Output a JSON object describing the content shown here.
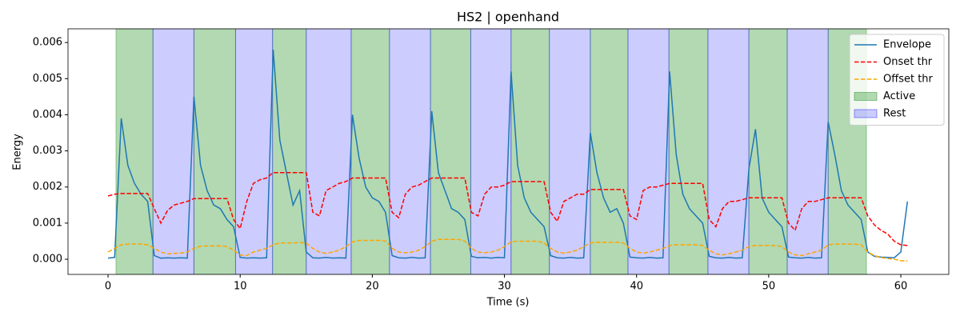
{
  "chart_data": {
    "type": "line",
    "title": "HS2 | openhand",
    "xlabel": "Time (s)",
    "ylabel": "Energy",
    "x": [
      0,
      0.5,
      1,
      1.5,
      2,
      2.5,
      3,
      3.5,
      4,
      4.5,
      5,
      5.5,
      6,
      6.5,
      7,
      7.5,
      8,
      8.5,
      9,
      9.5,
      10,
      10.5,
      11,
      11.5,
      12,
      12.5,
      13,
      13.5,
      14,
      14.5,
      15,
      15.5,
      16,
      16.5,
      17,
      17.5,
      18,
      18.5,
      19,
      19.5,
      20,
      20.5,
      21,
      21.5,
      22,
      22.5,
      23,
      23.5,
      24,
      24.5,
      25,
      25.5,
      26,
      26.5,
      27,
      27.5,
      28,
      28.5,
      29,
      29.5,
      30,
      30.5,
      31,
      31.5,
      32,
      32.5,
      33,
      33.5,
      34,
      34.5,
      35,
      35.5,
      36,
      36.5,
      37,
      37.5,
      38,
      38.5,
      39,
      39.5,
      40,
      40.5,
      41,
      41.5,
      42,
      42.5,
      43,
      43.5,
      44,
      44.5,
      45,
      45.5,
      46,
      46.5,
      47,
      47.5,
      48,
      48.5,
      49,
      49.5,
      50,
      50.5,
      51,
      51.5,
      52,
      52.5,
      53,
      53.5,
      54,
      54.5,
      55,
      55.5,
      56,
      56.5,
      57,
      57.5,
      58,
      58.5,
      59,
      59.5,
      60,
      60.5
    ],
    "series": [
      {
        "name": "Envelope",
        "color": "#1f77b4",
        "dash": false,
        "values": [
          3e-05,
          5e-05,
          0.0039,
          0.0026,
          0.0021,
          0.0018,
          0.0016,
          0.0001,
          3e-05,
          4e-05,
          3e-05,
          4e-05,
          3e-05,
          0.0045,
          0.0026,
          0.0019,
          0.0015,
          0.0014,
          0.0011,
          0.0009,
          5e-05,
          3e-05,
          4e-05,
          3e-05,
          4e-05,
          0.0058,
          0.0033,
          0.0024,
          0.0015,
          0.0019,
          0.0002,
          4e-05,
          3e-05,
          5e-05,
          3e-05,
          4e-05,
          3e-05,
          0.004,
          0.0028,
          0.002,
          0.0017,
          0.0016,
          0.0013,
          0.0001,
          4e-05,
          3e-05,
          5e-05,
          3e-05,
          4e-05,
          0.0041,
          0.0024,
          0.0019,
          0.0014,
          0.0013,
          0.0011,
          8e-05,
          4e-05,
          5e-05,
          3e-05,
          5e-05,
          4e-05,
          0.0052,
          0.0026,
          0.0017,
          0.0013,
          0.0011,
          0.0009,
          0.0001,
          4e-05,
          3e-05,
          5e-05,
          3e-05,
          4e-05,
          0.0035,
          0.0024,
          0.0017,
          0.0013,
          0.0014,
          0.001,
          6e-05,
          4e-05,
          3e-05,
          5e-05,
          3e-05,
          4e-05,
          0.0052,
          0.0029,
          0.0018,
          0.0014,
          0.0012,
          0.001,
          8e-05,
          4e-05,
          3e-05,
          5e-05,
          3e-05,
          4e-05,
          0.0025,
          0.0036,
          0.0017,
          0.0013,
          0.0011,
          0.0009,
          6e-05,
          4e-05,
          3e-05,
          5e-05,
          3e-05,
          4e-05,
          0.0038,
          0.0029,
          0.0019,
          0.0015,
          0.0013,
          0.0011,
          0.0002,
          8e-05,
          6e-05,
          5e-05,
          4e-05,
          0.0002,
          0.0016
        ]
      },
      {
        "name": "Onset thr",
        "color": "#ff0000",
        "dash": true,
        "values": [
          0.00175,
          0.0018,
          0.00182,
          0.00182,
          0.00182,
          0.00182,
          0.00182,
          0.0014,
          0.001,
          0.00135,
          0.0015,
          0.00155,
          0.0016,
          0.00168,
          0.00168,
          0.00168,
          0.00168,
          0.00168,
          0.00168,
          0.0011,
          0.00085,
          0.0016,
          0.0021,
          0.0022,
          0.00225,
          0.0024,
          0.0024,
          0.0024,
          0.0024,
          0.0024,
          0.0024,
          0.0013,
          0.0012,
          0.0019,
          0.002,
          0.0021,
          0.00215,
          0.00225,
          0.00225,
          0.00225,
          0.00225,
          0.00225,
          0.00225,
          0.0013,
          0.00115,
          0.0018,
          0.002,
          0.00205,
          0.00215,
          0.00225,
          0.00225,
          0.00225,
          0.00225,
          0.00225,
          0.00225,
          0.0013,
          0.0012,
          0.0018,
          0.002,
          0.002,
          0.00205,
          0.00215,
          0.00215,
          0.00215,
          0.00215,
          0.00215,
          0.00215,
          0.0013,
          0.00105,
          0.0016,
          0.0017,
          0.0018,
          0.0018,
          0.00193,
          0.00193,
          0.00193,
          0.00193,
          0.00193,
          0.00193,
          0.0012,
          0.0011,
          0.0019,
          0.002,
          0.002,
          0.00205,
          0.0021,
          0.0021,
          0.0021,
          0.0021,
          0.0021,
          0.0021,
          0.0011,
          0.0009,
          0.0014,
          0.0016,
          0.0016,
          0.00165,
          0.0017,
          0.0017,
          0.0017,
          0.0017,
          0.0017,
          0.0017,
          0.001,
          0.0008,
          0.0014,
          0.0016,
          0.0016,
          0.00165,
          0.0017,
          0.0017,
          0.0017,
          0.0017,
          0.0017,
          0.0017,
          0.0012,
          0.00095,
          0.0008,
          0.0007,
          0.0005,
          0.0004,
          0.00038
        ]
      },
      {
        "name": "Offset thr",
        "color": "#ffa500",
        "dash": true,
        "values": [
          0.0002,
          0.0003,
          0.0004,
          0.00042,
          0.00042,
          0.00042,
          0.0004,
          0.0003,
          0.0002,
          0.00015,
          0.00016,
          0.00017,
          0.0002,
          0.0003,
          0.00036,
          0.00037,
          0.00037,
          0.00037,
          0.00035,
          0.00025,
          0.00012,
          0.0001,
          0.0002,
          0.00025,
          0.0003,
          0.0004,
          0.00045,
          0.00045,
          0.00045,
          0.00046,
          0.00045,
          0.0003,
          0.0002,
          0.00016,
          0.0002,
          0.00025,
          0.00035,
          0.00048,
          0.00052,
          0.00052,
          0.00052,
          0.00052,
          0.0005,
          0.0003,
          0.0002,
          0.00018,
          0.0002,
          0.00025,
          0.00035,
          0.0005,
          0.00055,
          0.00055,
          0.00055,
          0.00055,
          0.0005,
          0.0003,
          0.0002,
          0.00018,
          0.0002,
          0.00025,
          0.00035,
          0.00048,
          0.0005,
          0.0005,
          0.0005,
          0.0005,
          0.00045,
          0.0003,
          0.0002,
          0.00017,
          0.0002,
          0.00025,
          0.00035,
          0.00045,
          0.00047,
          0.00047,
          0.00047,
          0.00047,
          0.00045,
          0.0003,
          0.0002,
          0.00017,
          0.0002,
          0.00025,
          0.0003,
          0.00038,
          0.0004,
          0.0004,
          0.0004,
          0.0004,
          0.00038,
          0.00025,
          0.00015,
          0.00012,
          0.00015,
          0.0002,
          0.00025,
          0.00035,
          0.00038,
          0.00038,
          0.00038,
          0.00038,
          0.00035,
          0.0002,
          0.00012,
          0.0001,
          0.00015,
          0.0002,
          0.00025,
          0.0004,
          0.00042,
          0.00042,
          0.00042,
          0.00042,
          0.0004,
          0.0002,
          0.0001,
          5e-05,
          2e-05,
          0,
          -4e-05,
          -5e-05
        ]
      }
    ],
    "spans": [
      {
        "name": "Active",
        "color": "#008000",
        "starts": [
          0.6,
          6.5,
          12.45,
          18.4,
          24.4,
          30.5,
          36.5,
          42.45,
          48.5,
          54.5
        ],
        "ends": [
          3.4,
          9.65,
          15.0,
          21.3,
          27.45,
          33.4,
          39.35,
          45.4,
          51.4,
          57.4
        ]
      },
      {
        "name": "Rest",
        "color": "#0000ff",
        "starts": [
          3.4,
          9.65,
          15.0,
          21.3,
          27.45,
          33.4,
          39.35,
          45.4,
          51.4
        ],
        "ends": [
          6.5,
          12.45,
          18.4,
          24.4,
          30.5,
          36.5,
          42.45,
          48.5,
          54.5
        ]
      }
    ],
    "xlim": [
      -3.03,
      63.63
    ],
    "ylim": [
      -0.00042,
      0.00638
    ],
    "xticks": [
      0,
      10,
      20,
      30,
      40,
      50,
      60
    ],
    "yticks": [
      {
        "value": 0,
        "label": "0.000"
      },
      {
        "value": 0.001,
        "label": "0.001"
      },
      {
        "value": 0.002,
        "label": "0.002"
      },
      {
        "value": 0.003,
        "label": "0.003"
      },
      {
        "value": 0.004,
        "label": "0.004"
      },
      {
        "value": 0.005,
        "label": "0.005"
      },
      {
        "value": 0.006,
        "label": "0.006"
      }
    ],
    "legend": "upper right"
  }
}
